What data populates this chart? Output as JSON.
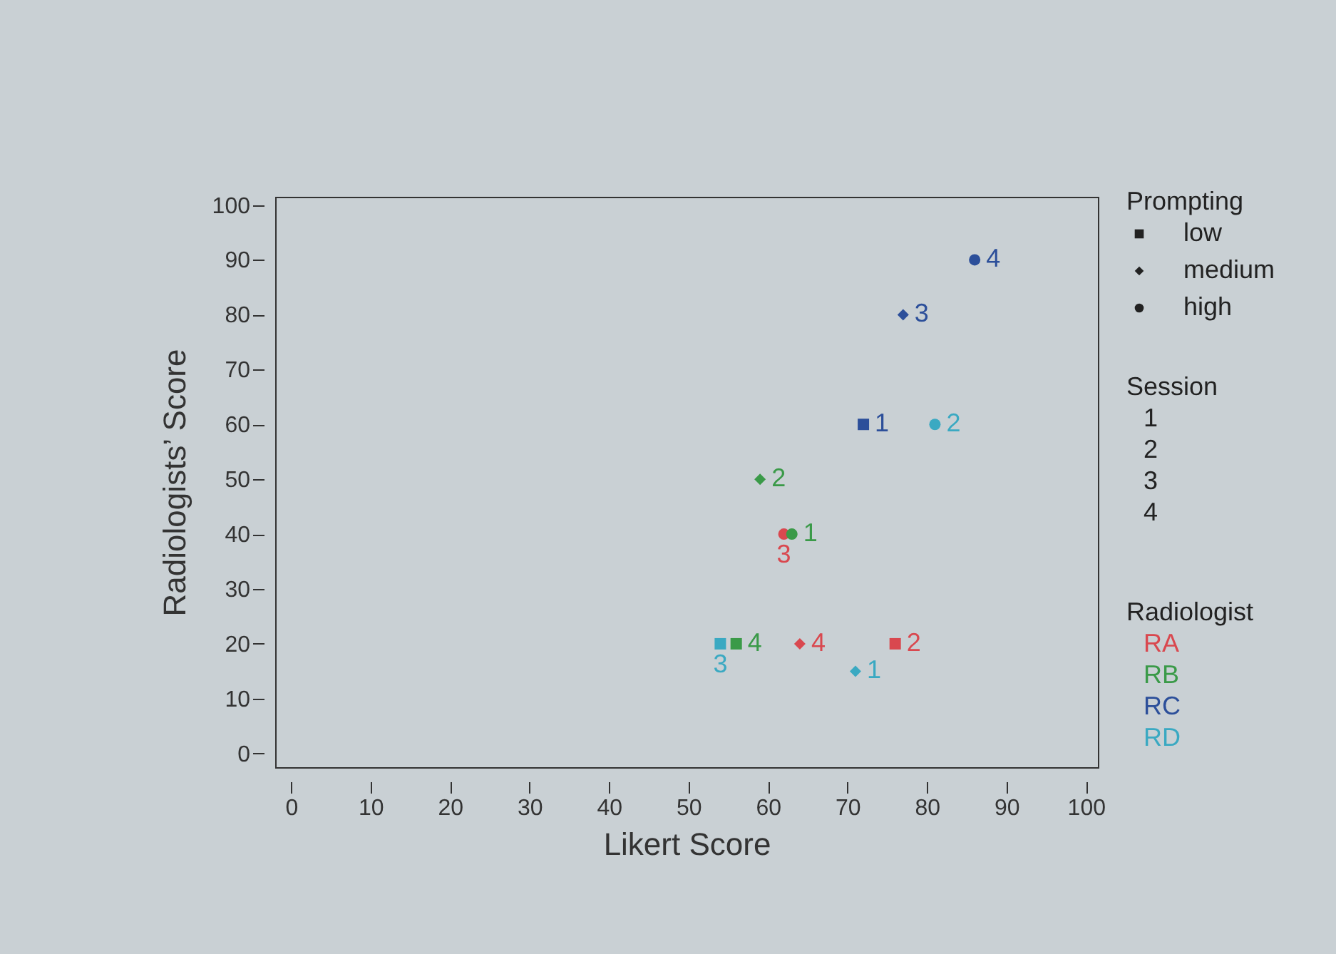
{
  "chart_data": {
    "type": "scatter",
    "xlabel": "Likert Score",
    "ylabel": "Radiologists’ Score",
    "legend_title": "Radiologist",
    "legend": "right",
    "xlim": [
      -2,
      101.5
    ],
    "ylim": [
      -2.5,
      101.5
    ],
    "xticks": [
      0,
      10,
      20,
      30,
      40,
      50,
      60,
      70,
      80,
      90,
      100
    ],
    "yticks": [
      0,
      10,
      20,
      30,
      40,
      50,
      60,
      70,
      80,
      90,
      100
    ],
    "grid": false,
    "annotations": [
      "Prompting",
      "low",
      "medium",
      "high",
      "Session",
      "1",
      "2",
      "3",
      "4",
      {
        "text": "1",
        "x": 72,
        "y": 60
      },
      {
        "text": "3",
        "x": 77,
        "y": 80
      },
      {
        "text": "4",
        "x": 86,
        "y": 90
      },
      {
        "text": "2",
        "x": 76,
        "y": 20
      },
      {
        "text": "4",
        "x": 64,
        "y": 20
      },
      {
        "text": "3",
        "x": 62,
        "y": 40
      },
      {
        "text": "4",
        "x": 56,
        "y": 20
      },
      {
        "text": "2",
        "x": 59,
        "y": 50
      },
      {
        "text": "1",
        "x": 63,
        "y": 40
      },
      {
        "text": "3",
        "x": 54,
        "y": 20
      },
      {
        "text": "1",
        "x": 71,
        "y": 15
      },
      {
        "text": "2",
        "x": 81,
        "y": 60
      }
    ],
    "series": [
      {
        "name": "RA",
        "color": "#d9484f",
        "marker": "square",
        "x": [
          76
        ],
        "values": [
          20
        ]
      },
      {
        "color": "#d9484f",
        "marker": "diamond",
        "x": [
          64
        ],
        "values": [
          20
        ]
      },
      {
        "color": "#d9484f",
        "marker": "circle",
        "x": [
          62
        ],
        "values": [
          40
        ]
      },
      {
        "name": "RB",
        "color": "#3a9a48",
        "marker": "square",
        "x": [
          56
        ],
        "values": [
          20
        ]
      },
      {
        "color": "#3a9a48",
        "marker": "diamond",
        "x": [
          59
        ],
        "values": [
          50
        ]
      },
      {
        "color": "#3a9a48",
        "marker": "circle",
        "x": [
          63
        ],
        "values": [
          40
        ]
      },
      {
        "name": "RC",
        "color": "#2c4f9a",
        "marker": "square",
        "x": [
          72
        ],
        "values": [
          60
        ]
      },
      {
        "color": "#2c4f9a",
        "marker": "diamond",
        "x": [
          77
        ],
        "values": [
          80
        ]
      },
      {
        "color": "#2c4f9a",
        "marker": "circle",
        "x": [
          86
        ],
        "values": [
          90
        ]
      },
      {
        "name": "RD",
        "color": "#3aa9c2",
        "marker": "square",
        "x": [
          54
        ],
        "values": [
          20
        ]
      },
      {
        "color": "#3aa9c2",
        "marker": "diamond",
        "x": [
          71
        ],
        "values": [
          15
        ]
      },
      {
        "color": "#3aa9c2",
        "marker": "circle",
        "x": [
          81
        ],
        "values": [
          60
        ]
      }
    ]
  }
}
